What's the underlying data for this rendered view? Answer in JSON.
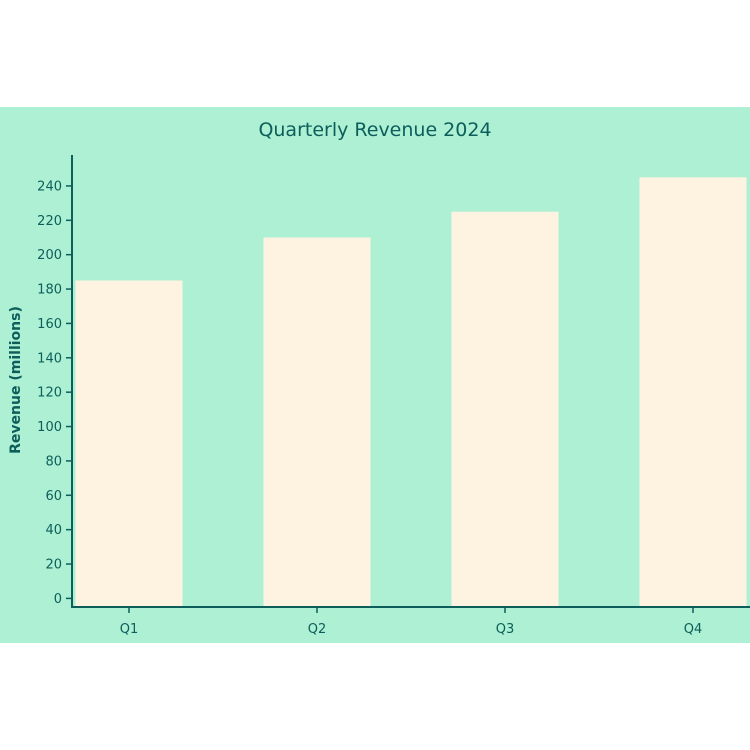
{
  "chart_data": {
    "type": "bar",
    "title": "Quarterly Revenue 2024",
    "xlabel": "",
    "ylabel": "Revenue (millions)",
    "categories": [
      "Q1",
      "Q2",
      "Q3",
      "Q4"
    ],
    "values": [
      185,
      210,
      225,
      245
    ],
    "ylim": [
      -5,
      258
    ],
    "yticks": [
      0,
      20,
      40,
      60,
      80,
      100,
      120,
      140,
      160,
      180,
      200,
      220,
      240
    ],
    "grid": false,
    "legend": "none"
  },
  "colors": {
    "background": "#adf0d4",
    "bar": "#fef3e0",
    "axis": "#0d5e5a",
    "text": "#0d5e5a"
  }
}
